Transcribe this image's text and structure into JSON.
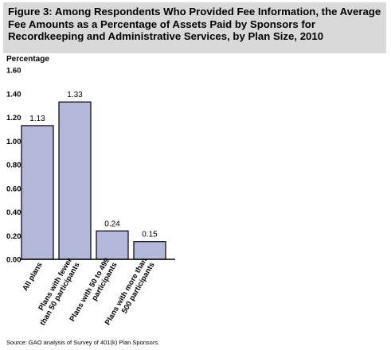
{
  "figure": {
    "title": "Figure 3: Among Respondents Who Provided Fee Information, the Average Fee Amounts as a Percentage of Assets Paid by Sponsors for Recordkeeping and Administrative Services, by Plan Size, 2010",
    "source": "Source: GAO analysis of Survey of 401(k) Plan Sponsors."
  },
  "chart_data": {
    "type": "bar",
    "title": "Figure 3: Among Respondents Who Provided Fee Information, the Average Fee Amounts as a Percentage of Assets Paid by Sponsors for Recordkeeping and Administrative Services, by Plan Size, 2010",
    "ylabel": "Percentage",
    "xlabel": "",
    "categories": [
      [
        "All plans"
      ],
      [
        "Plans with fewer",
        "than 50 participants"
      ],
      [
        "Plans with 50 to 499",
        "participants"
      ],
      [
        "Plans with more than",
        "500 participants"
      ]
    ],
    "values": [
      1.13,
      1.33,
      0.24,
      0.15
    ],
    "data_labels": [
      "1.13",
      "1.33",
      "0.24",
      "0.15"
    ],
    "ylim": [
      0,
      1.6
    ],
    "yticks": [
      "0.00",
      "0.20",
      "0.40",
      "0.60",
      "0.80",
      "1.00",
      "1.20",
      "1.40",
      "1.60"
    ],
    "grid": false,
    "bar_color": "#b3b7d9",
    "bar_stroke": "#000000"
  }
}
